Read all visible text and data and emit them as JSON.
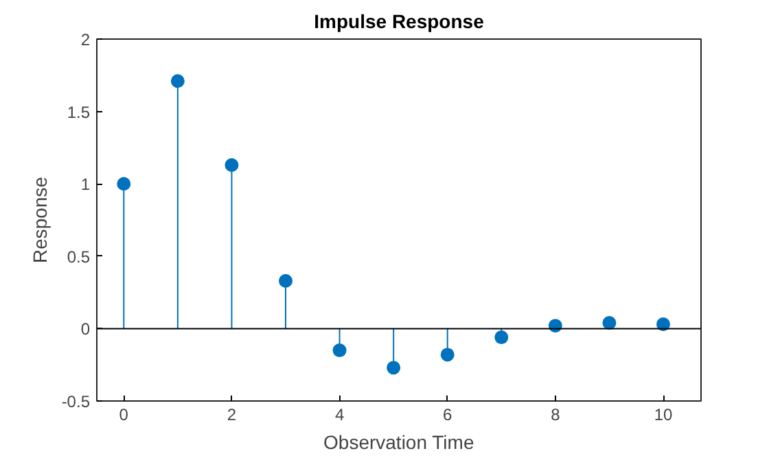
{
  "chart_data": {
    "type": "lollipop",
    "title": "Impulse Response",
    "xlabel": "Observation Time",
    "ylabel": "Response",
    "x": [
      0,
      1,
      2,
      3,
      4,
      5,
      6,
      7,
      8,
      9,
      10
    ],
    "series": [
      {
        "color": "#0072bd",
        "values": [
          1.0,
          1.71,
          1.13,
          0.33,
          -0.15,
          -0.27,
          -0.18,
          -0.06,
          0.02,
          0.04,
          0.03
        ]
      }
    ],
    "marker": "circle",
    "grid": false,
    "ref_lines": [
      {
        "axis": "y",
        "value": 0,
        "color": "#000000"
      }
    ],
    "xlim": [
      -0.5,
      10.7
    ],
    "ylim": [
      -0.5,
      2
    ],
    "xticks": [
      0,
      2,
      4,
      6,
      8,
      10
    ],
    "yticks": [
      -0.5,
      0,
      0.5,
      1,
      1.5,
      2
    ]
  }
}
